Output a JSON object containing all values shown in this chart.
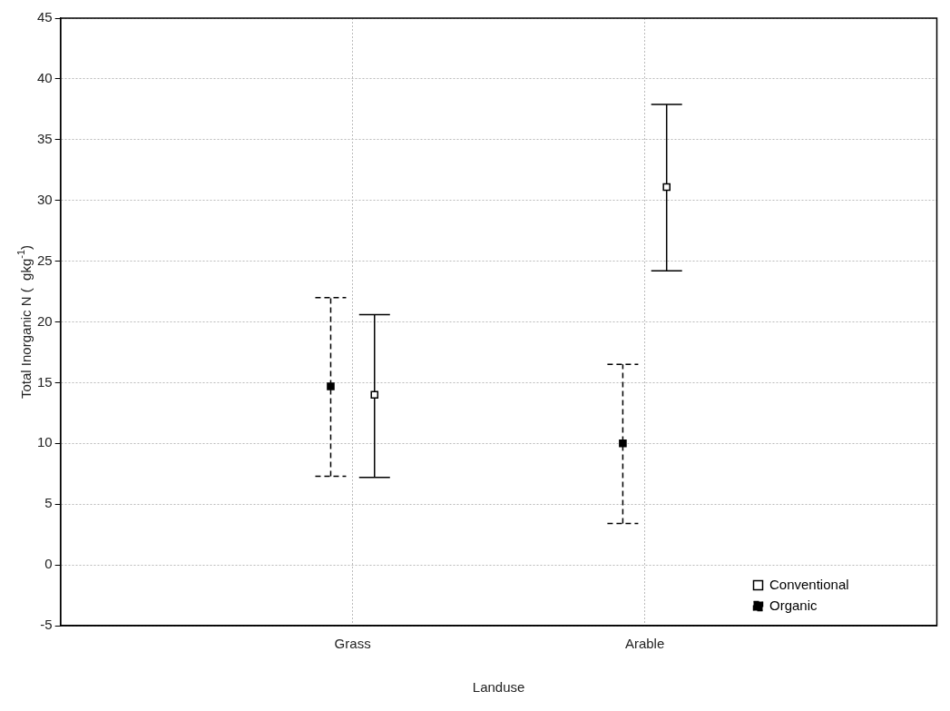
{
  "chart_data": {
    "type": "scatter",
    "xlabel": "Landuse",
    "ylabel": "Total Inorganic N (  gkg$^{-1}$)",
    "categories": [
      "Grass",
      "Arable"
    ],
    "series": [
      {
        "name": "Conventional",
        "color": "#ffffff",
        "marker": "square",
        "line_style": "solid",
        "values": [
          14.0,
          31.1
        ],
        "errors": [
          [
            7.2,
            20.6
          ],
          [
            24.2,
            37.9
          ]
        ]
      },
      {
        "name": "Organic",
        "color": "#000000",
        "marker": "square",
        "line_style": "dashed",
        "values": [
          14.7,
          10.0
        ],
        "errors": [
          [
            7.3,
            22.0
          ],
          [
            3.4,
            16.5
          ]
        ]
      }
    ],
    "ylim": [
      -5,
      45
    ],
    "yticks": [
      -5,
      0,
      5,
      10,
      15,
      20,
      25,
      30,
      35,
      40,
      45
    ],
    "grid": true,
    "legend": "bottom right"
  }
}
